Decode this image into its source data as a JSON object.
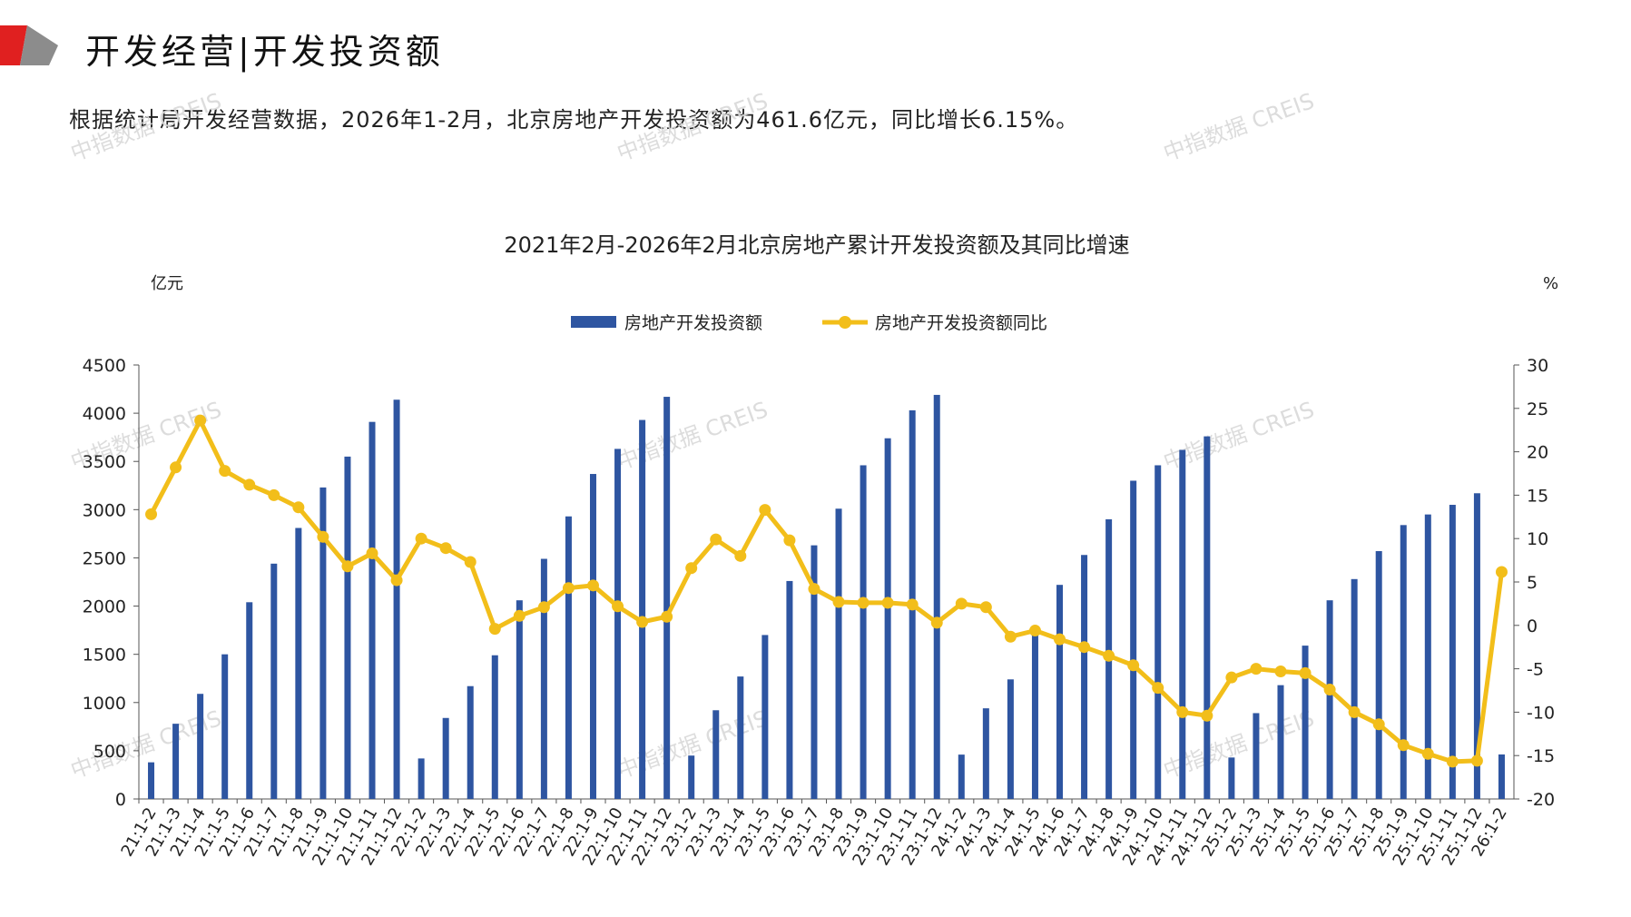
{
  "header": {
    "title": "开发经营|开发投资额",
    "summary": "根据统计局开发经营数据，2026年1-2月，北京房地产开发投资额为461.6亿元，同比增长6.15%。"
  },
  "watermark": "中指数据 CREIS",
  "colors": {
    "bar": "#2E55A1",
    "line": "#F2BE1A",
    "accent_red": "#E02020",
    "accent_gray": "#8C8C8C"
  },
  "chart_data": {
    "type": "bar",
    "title": "2021年2月-2026年2月北京房地产累计开发投资额及其同比增速",
    "ylabel_left": "亿元",
    "ylabel_right": "%",
    "ylim_left": [
      0,
      4500
    ],
    "ylim_right": [
      -20,
      30
    ],
    "yticks_left": [
      0,
      500,
      1000,
      1500,
      2000,
      2500,
      3000,
      3500,
      4000,
      4500
    ],
    "yticks_right": [
      -20,
      -15,
      -10,
      -5,
      0,
      5,
      10,
      15,
      20,
      25,
      30
    ],
    "legend_position": "top-center",
    "categories": [
      "21:1-2",
      "21:1-3",
      "21:1-4",
      "21:1-5",
      "21:1-6",
      "21:1-7",
      "21:1-8",
      "21:1-9",
      "21:1-10",
      "21:1-11",
      "21:1-12",
      "22:1-2",
      "22:1-3",
      "22:1-4",
      "22:1-5",
      "22:1-6",
      "22:1-7",
      "22:1-8",
      "22:1-9",
      "22:1-10",
      "22:1-11",
      "22:1-12",
      "23:1-2",
      "23:1-3",
      "23:1-4",
      "23:1-5",
      "23:1-6",
      "23:1-7",
      "23:1-8",
      "23:1-9",
      "23:1-10",
      "23:1-11",
      "23:1-12",
      "24:1-2",
      "24:1-3",
      "24:1-4",
      "24:1-5",
      "24:1-6",
      "24:1-7",
      "24:1-8",
      "24:1-9",
      "24:1-10",
      "24:1-11",
      "24:1-12",
      "25:1-2",
      "25:1-3",
      "25:1-4",
      "25:1-5",
      "25:1-6",
      "25:1-7",
      "25:1-8",
      "25:1-9",
      "25:1-10",
      "25:1-11",
      "25:1-12",
      "26:1-2"
    ],
    "series": [
      {
        "name": "房地产开发投资额",
        "type": "bar",
        "axis": "left",
        "values": [
          380,
          780,
          1090,
          1500,
          2040,
          2440,
          2810,
          3230,
          3550,
          3910,
          4140,
          420,
          840,
          1170,
          1490,
          2060,
          2490,
          2930,
          3370,
          3630,
          3930,
          4170,
          450,
          920,
          1270,
          1700,
          2260,
          2630,
          3010,
          3460,
          3740,
          4030,
          4190,
          460,
          940,
          1240,
          1720,
          2220,
          2530,
          2900,
          3300,
          3460,
          3620,
          3760,
          430,
          890,
          1180,
          1590,
          2060,
          2280,
          2570,
          2840,
          2950,
          3050,
          3170,
          461.6
        ]
      },
      {
        "name": "房地产开发投资额同比",
        "type": "line",
        "axis": "right",
        "values": [
          12.8,
          18.2,
          23.6,
          17.8,
          16.2,
          15.0,
          13.6,
          10.2,
          6.8,
          8.3,
          5.2,
          10.0,
          8.9,
          7.3,
          -0.4,
          1.1,
          2.1,
          4.3,
          4.6,
          2.2,
          0.4,
          1.0,
          6.6,
          9.9,
          8.0,
          13.3,
          9.8,
          4.2,
          2.7,
          2.6,
          2.6,
          2.4,
          0.3,
          2.5,
          2.1,
          -1.3,
          -0.6,
          -1.6,
          -2.5,
          -3.5,
          -4.6,
          -7.2,
          -10.0,
          -10.4,
          -6.0,
          -5.0,
          -5.3,
          -5.5,
          -7.4,
          -10.0,
          -11.4,
          -13.8,
          -14.8,
          -15.7,
          -15.6,
          6.15
        ]
      }
    ]
  }
}
